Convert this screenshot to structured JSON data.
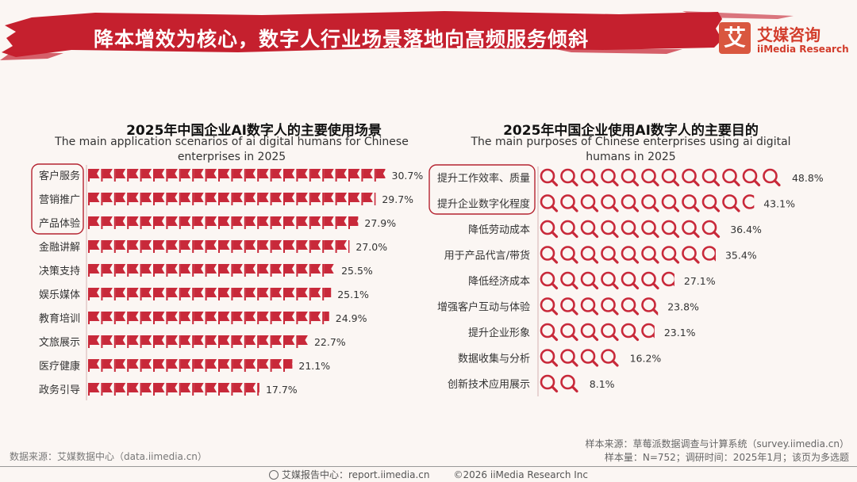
{
  "header": {
    "title": "降本增效为核心，数字人行业场景落地向高频服务倾斜",
    "logo_mark": "艾",
    "logo_cn": "艾媒咨询",
    "logo_en": "iiMedia Research"
  },
  "colors": {
    "accent": "#c8293a",
    "banner": "#c5202e",
    "highlight_box": "#b52431"
  },
  "chart_data": [
    {
      "type": "bar",
      "title": "2025年中国企业AI数字人的主要使用场景",
      "subtitle": "The main application scenarios of ai digital humans for Chinese enterprises in 2025",
      "icon": "flag-icon",
      "categories": [
        "客户服务",
        "营销推广",
        "产品体验",
        "金融讲解",
        "决策支持",
        "娱乐媒体",
        "教育培训",
        "文旅展示",
        "医疗健康",
        "政务引导"
      ],
      "values": [
        30.7,
        29.7,
        27.9,
        27.0,
        25.5,
        25.1,
        24.9,
        22.7,
        21.1,
        17.7
      ],
      "value_labels": [
        "30.7%",
        "29.7%",
        "27.9%",
        "27.0%",
        "25.5%",
        "25.1%",
        "24.9%",
        "22.7%",
        "21.1%",
        "17.7%"
      ],
      "highlighted": [
        "客户服务",
        "营销推广",
        "产品体验"
      ]
    },
    {
      "type": "bar",
      "title": "2025年中国企业使用AI数字人的主要目的",
      "subtitle": "The main purposes of Chinese enterprises using ai digital humans in 2025",
      "icon": "magnifier-icon",
      "categories": [
        "提升工作效率、质量",
        "提升企业数字化程度",
        "降低劳动成本",
        "用于产品代言/带货",
        "降低经济成本",
        "增强客户互动与体验",
        "提升企业形象",
        "数据收集与分析",
        "创新技术应用展示"
      ],
      "values": [
        48.8,
        43.1,
        36.4,
        35.4,
        27.1,
        23.8,
        23.1,
        16.2,
        8.1
      ],
      "value_labels": [
        "48.8%",
        "43.1%",
        "36.4%",
        "35.4%",
        "27.1%",
        "23.8%",
        "23.1%",
        "16.2%",
        "8.1%"
      ],
      "highlighted": [
        "提升工作效率、质量",
        "提升企业数字化程度"
      ]
    }
  ],
  "source_left": "数据来源：艾媒数据中心（data.iimedia.cn）",
  "source_right": {
    "line1": "样本来源：草莓派数据调查与计算系统（survey.iimedia.cn）",
    "line2": "样本量：N=752；调研时间：2025年1月；该页为多选题"
  },
  "footer": {
    "center": "艾媒报告中心：report.iimedia.cn",
    "copyright": "©2026  iiMedia Research  Inc"
  }
}
